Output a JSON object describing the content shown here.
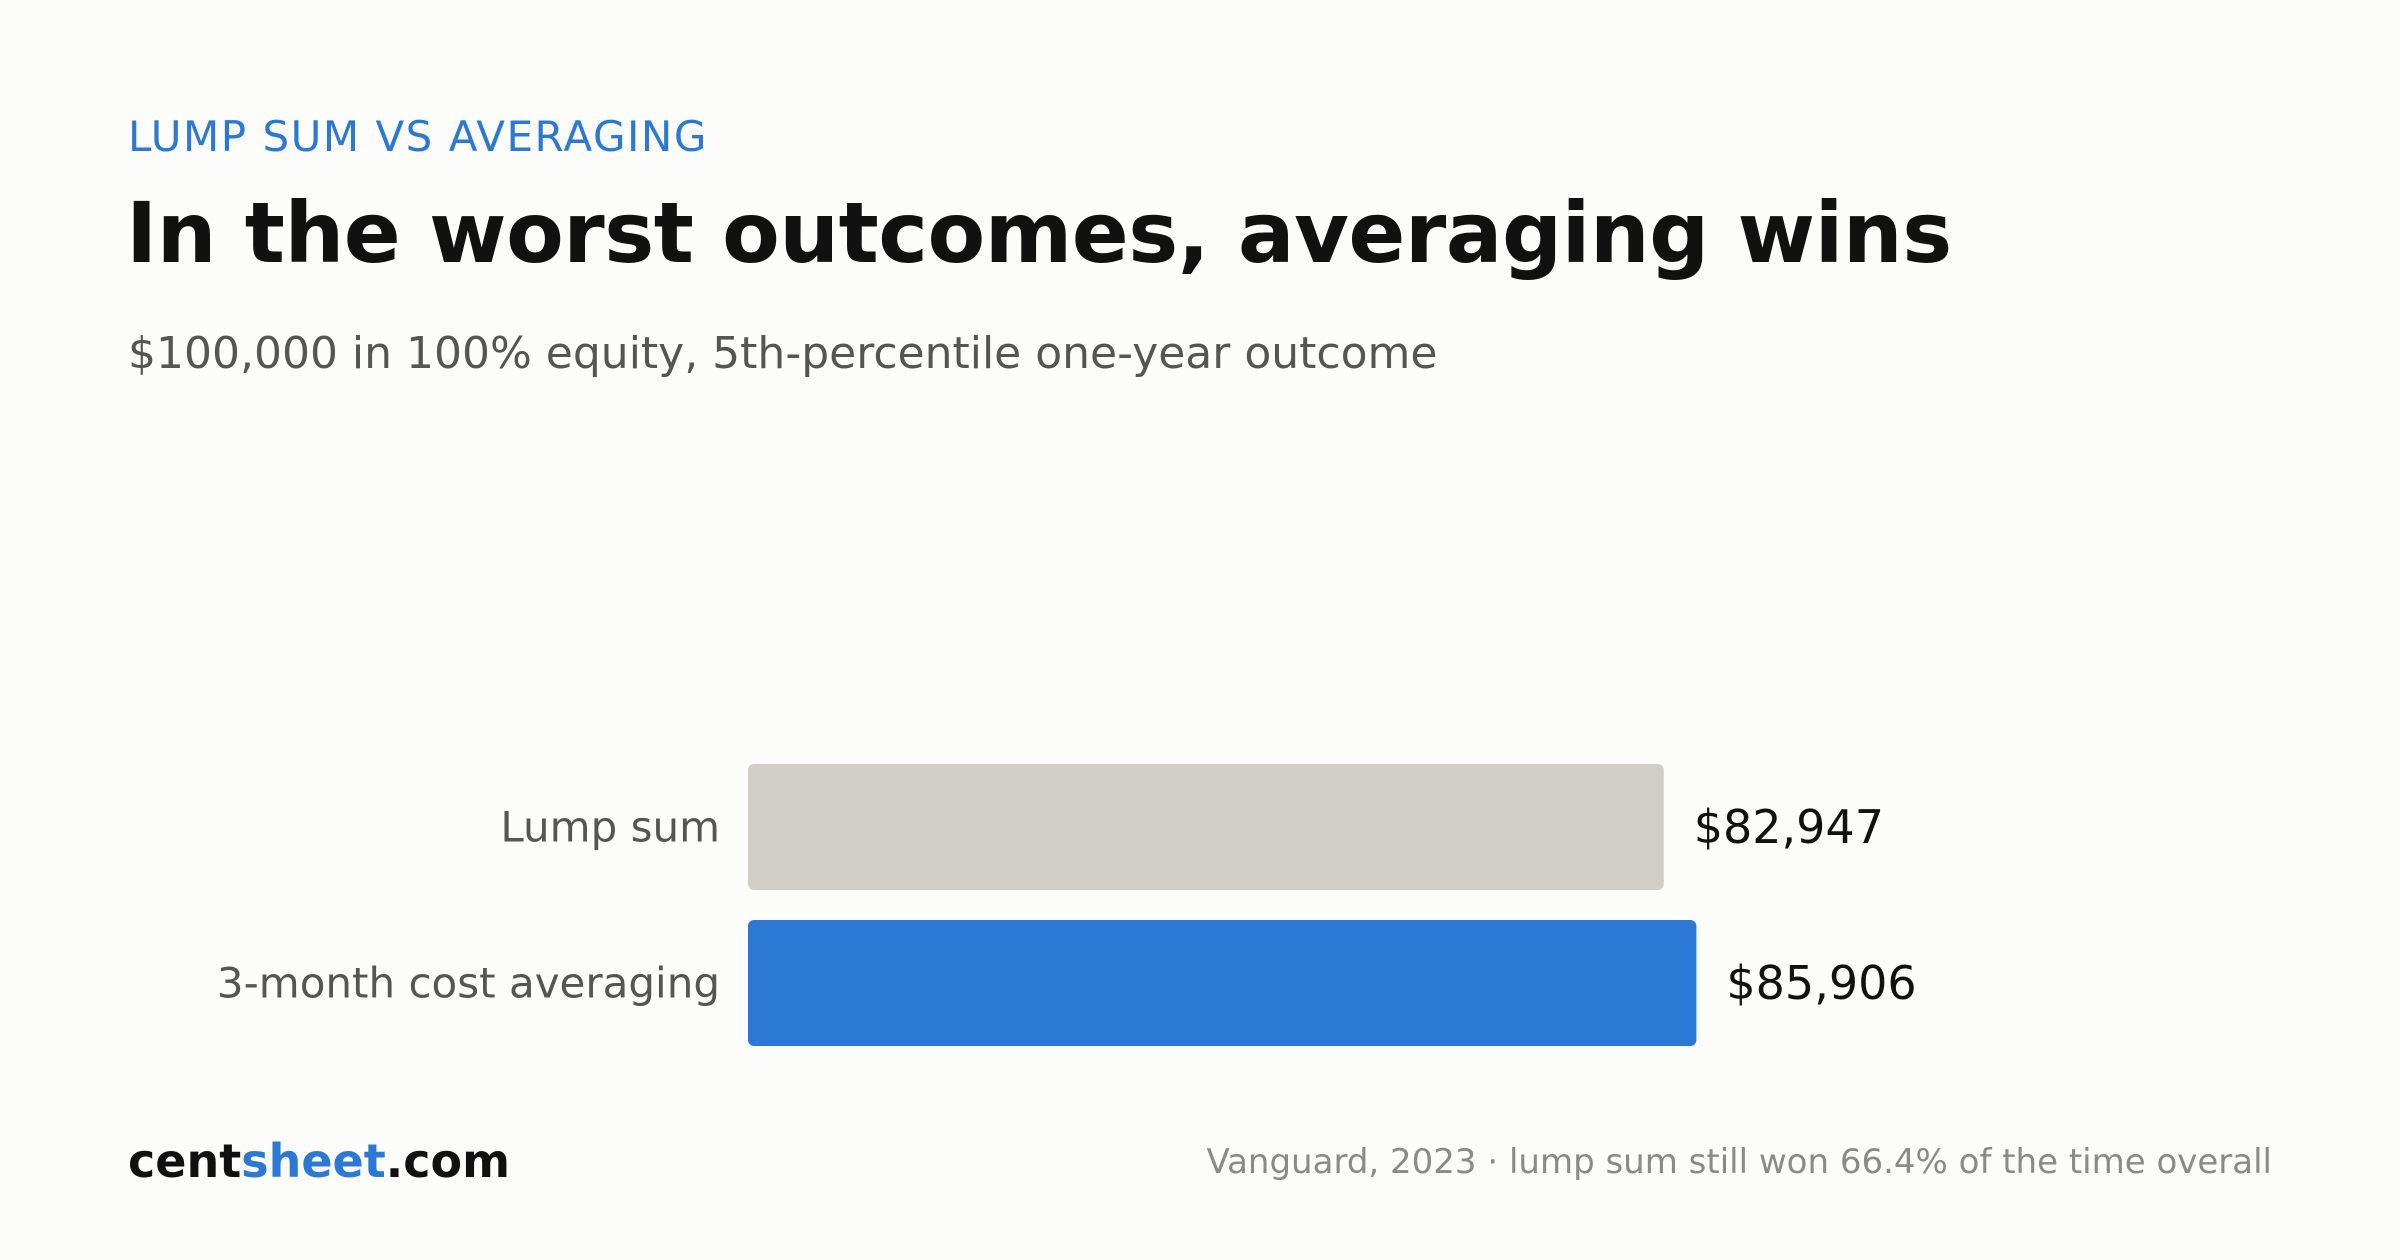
{
  "header": {
    "eyebrow": "LUMP SUM VS AVERAGING",
    "title": "In the worst outcomes, averaging wins",
    "subtitle": "$100,000 in 100% equity, 5th-percentile one-year outcome"
  },
  "footer": {
    "brand_pre": "cent",
    "brand_accent": "sheet",
    "brand_post": ".com",
    "source": "Vanguard, 2023 · lump sum still won 66.4% of the time overall"
  },
  "colors": {
    "accent": "#2b78d5",
    "bar_lump_sum": "#cfcfc7",
    "bar_averaging": "#2b78d5"
  },
  "chart_data": {
    "type": "bar",
    "orientation": "horizontal",
    "categories": [
      "Lump sum",
      "3-month cost averaging"
    ],
    "values": [
      82947,
      85906
    ],
    "value_labels": [
      "$82,947",
      "$85,906"
    ],
    "xlim": [
      0,
      100000
    ],
    "grid": false,
    "legend": "none"
  }
}
